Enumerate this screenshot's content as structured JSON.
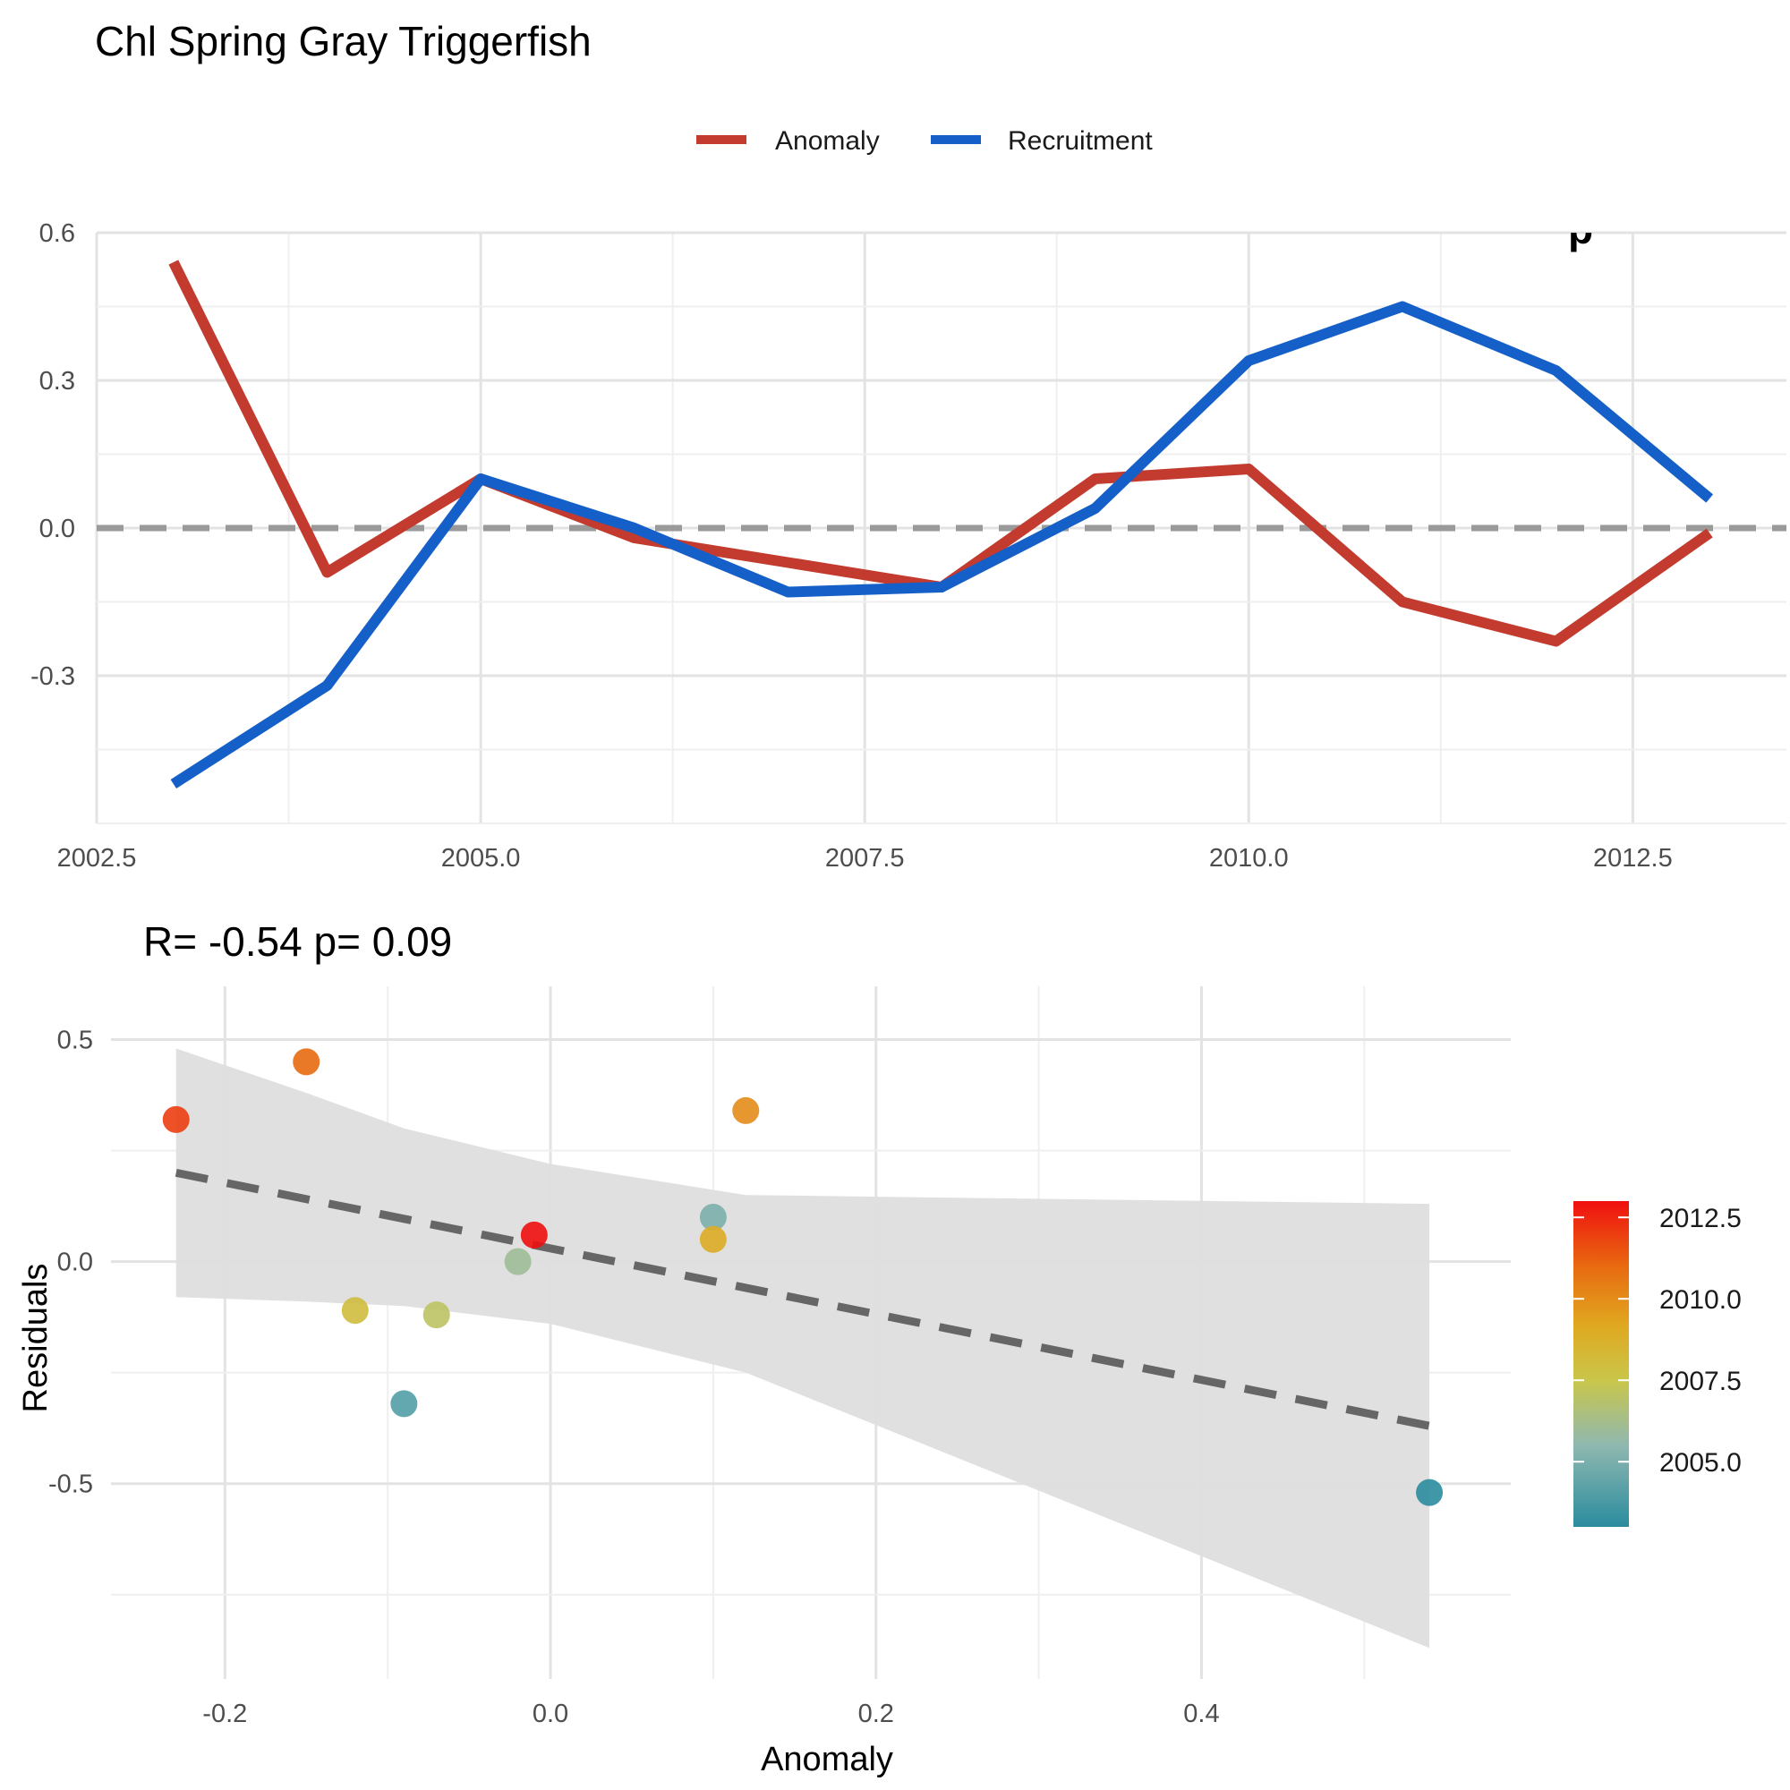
{
  "title": "Chl Spring Gray Triggerfish",
  "colors": {
    "anomaly": "#C23B2E",
    "recruitment": "#1560C8",
    "zero_line": "#9a9a9a",
    "fit_line": "#666666",
    "ribbon": "#dedede"
  },
  "chart_data": [
    {
      "type": "line",
      "legend_position": "top",
      "corner_label": "p",
      "x": [
        2003,
        2004,
        2005,
        2006,
        2007,
        2008,
        2009,
        2010,
        2011,
        2012,
        2013
      ],
      "xlim": [
        2002.5,
        2013.5
      ],
      "ylim": [
        -0.6,
        0.6
      ],
      "x_ticks": [
        "2002.5",
        "2005.0",
        "2007.5",
        "2010.0",
        "2012.5"
      ],
      "x_tick_values": [
        2002.5,
        2005.0,
        2007.5,
        2010.0,
        2012.5
      ],
      "y_ticks": [
        "0.6",
        "0.3",
        "0.0",
        "-0.3"
      ],
      "y_tick_values": [
        0.6,
        0.3,
        0.0,
        -0.3
      ],
      "reference_line_y": 0,
      "grid": true,
      "series": [
        {
          "name": "Anomaly",
          "values": [
            0.54,
            -0.09,
            0.1,
            -0.02,
            -0.07,
            -0.12,
            0.1,
            0.12,
            -0.15,
            -0.23,
            -0.01
          ]
        },
        {
          "name": "Recruitment",
          "values": [
            -0.52,
            -0.32,
            0.1,
            0.0,
            -0.13,
            -0.12,
            0.04,
            0.34,
            0.45,
            0.32,
            0.06
          ]
        }
      ]
    },
    {
      "type": "scatter",
      "subtitle": "R= -0.54  p= 0.09",
      "xlabel": "Anomaly",
      "ylabel": "Residuals",
      "xlim": [
        -0.27,
        0.59
      ],
      "ylim": [
        -0.94,
        0.62
      ],
      "x_ticks": [
        "-0.2",
        "0.0",
        "0.2",
        "0.4"
      ],
      "x_tick_values": [
        -0.2,
        0.0,
        0.2,
        0.4
      ],
      "y_ticks": [
        "0.5",
        "0.0",
        "-0.5"
      ],
      "y_tick_values": [
        0.5,
        0.0,
        -0.5
      ],
      "grid": true,
      "points": [
        {
          "x": 0.54,
          "y": -0.52,
          "year": 2003
        },
        {
          "x": -0.09,
          "y": -0.32,
          "year": 2004
        },
        {
          "x": 0.1,
          "y": 0.1,
          "year": 2005
        },
        {
          "x": -0.02,
          "y": 0.0,
          "year": 2006
        },
        {
          "x": -0.07,
          "y": -0.12,
          "year": 2007
        },
        {
          "x": -0.12,
          "y": -0.11,
          "year": 2008
        },
        {
          "x": 0.1,
          "y": 0.05,
          "year": 2009
        },
        {
          "x": 0.12,
          "y": 0.34,
          "year": 2010
        },
        {
          "x": -0.15,
          "y": 0.45,
          "year": 2011
        },
        {
          "x": -0.23,
          "y": 0.32,
          "year": 2012
        },
        {
          "x": -0.01,
          "y": 0.06,
          "year": 2013
        }
      ],
      "fit_line": {
        "x": [
          -0.23,
          0.54
        ],
        "y": [
          0.2,
          -0.37
        ]
      },
      "confidence_band": {
        "x": [
          -0.23,
          -0.15,
          -0.09,
          0.0,
          0.12,
          0.54
        ],
        "upper": [
          0.48,
          0.38,
          0.3,
          0.22,
          0.15,
          0.13
        ],
        "lower": [
          -0.08,
          -0.09,
          -0.1,
          -0.14,
          -0.25,
          -0.87
        ]
      },
      "colorbar": {
        "range": [
          2003,
          2013
        ],
        "ticks": [
          "2012.5",
          "2010.0",
          "2007.5",
          "2005.0"
        ],
        "tick_values": [
          2012.5,
          2010.0,
          2007.5,
          2005.0
        ],
        "colors": [
          "#2A8C9E",
          "#8FB8B0",
          "#C9C64A",
          "#E0A820",
          "#E86A10",
          "#F01010"
        ]
      }
    }
  ]
}
